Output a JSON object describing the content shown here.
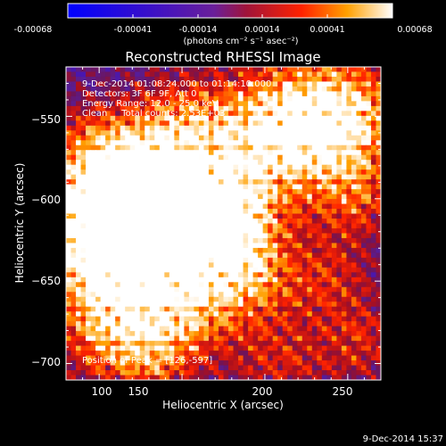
{
  "colorbar": {
    "ticks": [
      "-0.00068",
      "-0.00041",
      "-0.00014",
      "0.00014",
      "0.00041",
      "0.00068"
    ],
    "units_label": "(photons cm⁻² s⁻¹ asec⁻²)"
  },
  "chart_data": {
    "type": "heatmap",
    "title": "Reconstructed RHESSI Image",
    "xlabel": "Heliocentric X (arcsec)",
    "ylabel": "Heliocentric Y (arcsec)",
    "xlim": [
      80,
      270
    ],
    "ylim": [
      -710,
      -520
    ],
    "x_ticks": [
      100,
      150,
      200,
      250
    ],
    "y_ticks": [
      -550,
      -600,
      -650,
      -700
    ],
    "x_tick_labels": [
      "100",
      "150",
      "200",
      "250"
    ],
    "y_tick_labels": [
      "−550",
      "−600",
      "−650",
      "−700"
    ],
    "color_range": [
      -0.00068,
      0.00068
    ],
    "colormap": "blue-purple-red-yellow-white",
    "peak": [
      126,
      -597
    ],
    "annotations": [
      "9-Dec-2014 01:08:24.000 to 01:14:10.000",
      "Detectors: 3F 6F 9F, Att 0",
      "Energy Range: 12.0 - 25.0 keV",
      "Clean     Total counts: 2.53E+03",
      "Position of Peak = [126,-597]"
    ]
  },
  "footer_timestamp": "9-Dec-2014 15:37"
}
